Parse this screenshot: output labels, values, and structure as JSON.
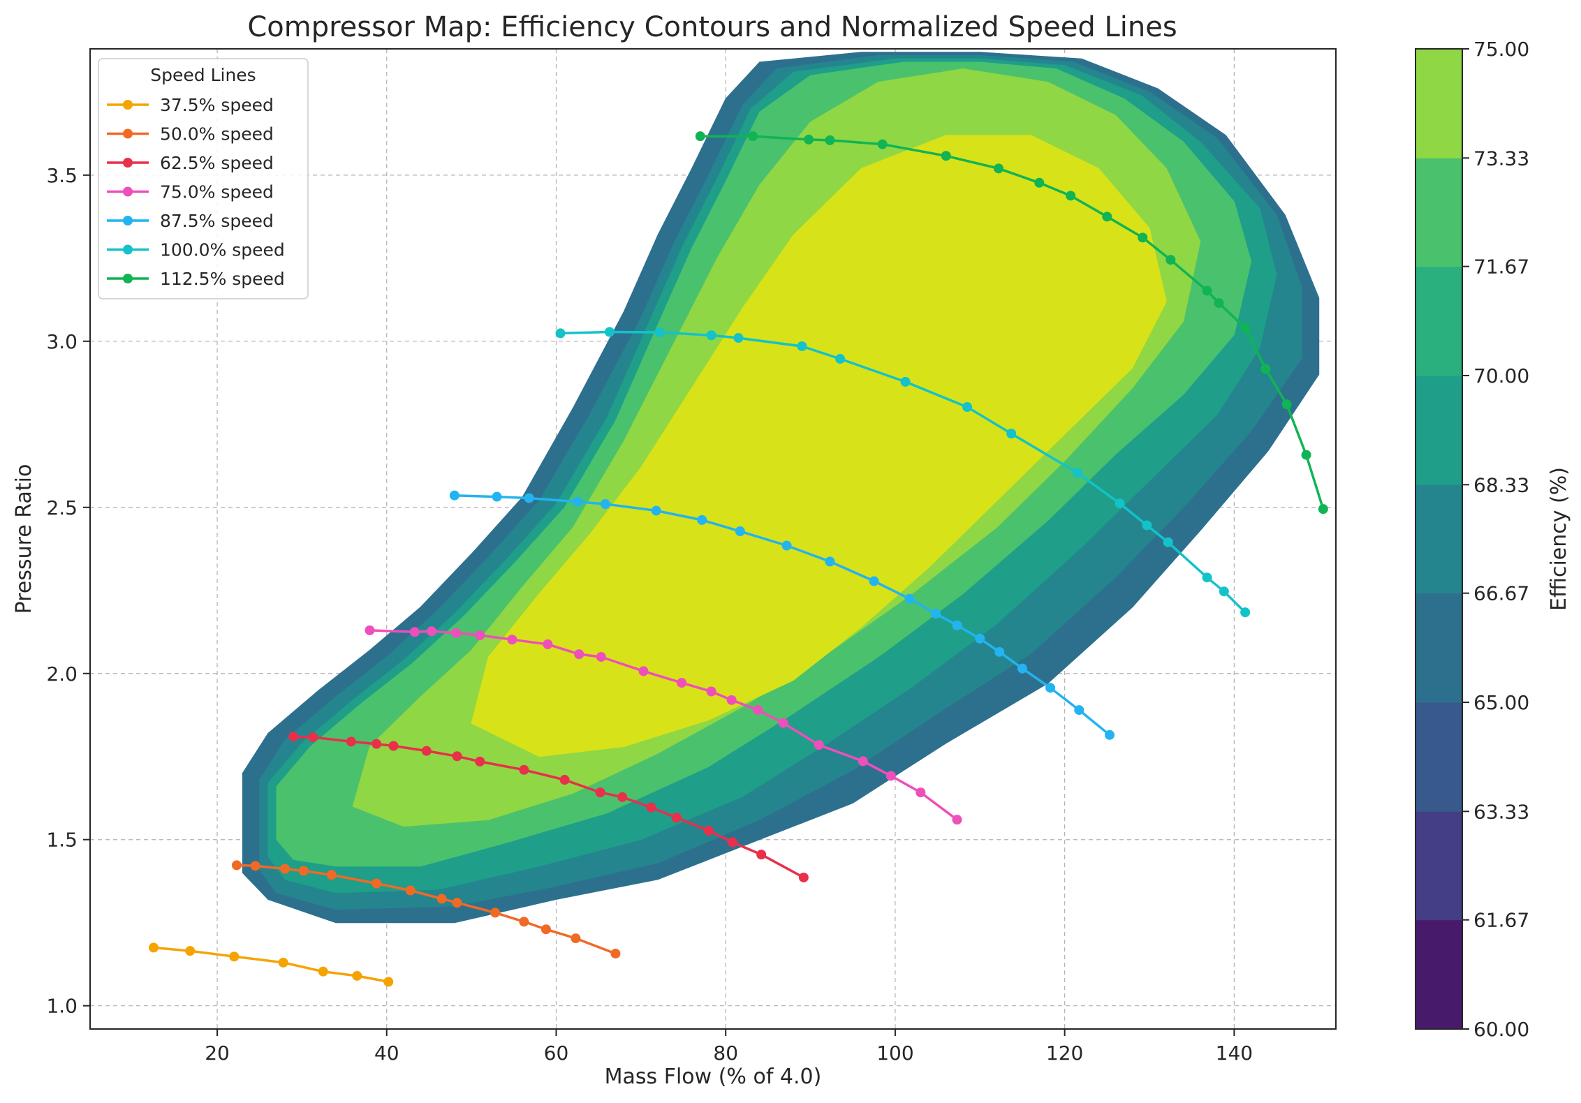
{
  "chart_data": {
    "type": "contour+line",
    "title": "Compressor Map: Efficiency Contours and Normalized Speed Lines",
    "xlabel": "Mass Flow (% of 4.0)",
    "ylabel": "Pressure Ratio",
    "xlim": [
      5,
      152
    ],
    "ylim": [
      0.93,
      3.88
    ],
    "xticks": [
      20,
      40,
      60,
      80,
      100,
      120,
      140
    ],
    "yticks": [
      1.0,
      1.5,
      2.0,
      2.5,
      3.0,
      3.5
    ],
    "ytick_labels": [
      "1.0",
      "1.5",
      "2.0",
      "2.5",
      "3.0",
      "3.5"
    ],
    "grid": true,
    "legend_title": "Speed Lines",
    "legend_position": "top-left",
    "colorbar": {
      "label": "Efficiency (%)",
      "levels": [
        60.0,
        61.67,
        63.33,
        65.0,
        66.67,
        68.33,
        70.0,
        71.67,
        73.33,
        75.0
      ],
      "tick_labels": [
        "60.00",
        "61.67",
        "63.33",
        "65.00",
        "66.67",
        "68.33",
        "70.00",
        "71.67",
        "73.33",
        "75.00"
      ],
      "colors": [
        "#481a6c",
        "#433e85",
        "#38598c",
        "#2d708e",
        "#25858e",
        "#1f9e89",
        "#2ab07f",
        "#4ac16d",
        "#8fd744",
        "#d7e219"
      ]
    },
    "contour_regions": [
      {
        "level": "65.00-66.67",
        "color": "#2d708e",
        "outline": [
          [
            23,
            1.4
          ],
          [
            23,
            1.7
          ],
          [
            26,
            1.82
          ],
          [
            32,
            1.95
          ],
          [
            38,
            2.07
          ],
          [
            44,
            2.2
          ],
          [
            50,
            2.36
          ],
          [
            56,
            2.53
          ],
          [
            62,
            2.8
          ],
          [
            68,
            3.09
          ],
          [
            72,
            3.32
          ],
          [
            76,
            3.52
          ],
          [
            80,
            3.73
          ],
          [
            84,
            3.84
          ],
          [
            96,
            3.87
          ],
          [
            110,
            3.87
          ],
          [
            122,
            3.85
          ],
          [
            131,
            3.76
          ],
          [
            139,
            3.62
          ],
          [
            146,
            3.38
          ],
          [
            150,
            3.13
          ],
          [
            150,
            2.9
          ],
          [
            144,
            2.67
          ],
          [
            136,
            2.43
          ],
          [
            128,
            2.2
          ],
          [
            118,
            1.97
          ],
          [
            106,
            1.79
          ],
          [
            95,
            1.61
          ],
          [
            84,
            1.5
          ],
          [
            72,
            1.38
          ],
          [
            60,
            1.32
          ],
          [
            48,
            1.25
          ],
          [
            34,
            1.25
          ],
          [
            26,
            1.32
          ]
        ]
      },
      {
        "level": "66.67-68.33",
        "color": "#25858e",
        "outline": [
          [
            25,
            1.41
          ],
          [
            25,
            1.68
          ],
          [
            28,
            1.8
          ],
          [
            34,
            1.93
          ],
          [
            40,
            2.05
          ],
          [
            46,
            2.19
          ],
          [
            52,
            2.35
          ],
          [
            58,
            2.52
          ],
          [
            64,
            2.78
          ],
          [
            70,
            3.07
          ],
          [
            74,
            3.3
          ],
          [
            78,
            3.5
          ],
          [
            82,
            3.71
          ],
          [
            86,
            3.82
          ],
          [
            98,
            3.86
          ],
          [
            110,
            3.86
          ],
          [
            121,
            3.84
          ],
          [
            130,
            3.75
          ],
          [
            138,
            3.61
          ],
          [
            145,
            3.38
          ],
          [
            148,
            3.16
          ],
          [
            148,
            2.95
          ],
          [
            142,
            2.73
          ],
          [
            134,
            2.5
          ],
          [
            126,
            2.29
          ],
          [
            116,
            2.06
          ],
          [
            105,
            1.88
          ],
          [
            95,
            1.71
          ],
          [
            84,
            1.56
          ],
          [
            72,
            1.43
          ],
          [
            60,
            1.36
          ],
          [
            48,
            1.3
          ],
          [
            34,
            1.29
          ],
          [
            27,
            1.34
          ]
        ]
      },
      {
        "level": "68.33-70.00",
        "color": "#1f9e89",
        "outline": [
          [
            26,
            1.45
          ],
          [
            26,
            1.67
          ],
          [
            30,
            1.79
          ],
          [
            36,
            1.92
          ],
          [
            42,
            2.04
          ],
          [
            48,
            2.18
          ],
          [
            54,
            2.34
          ],
          [
            60,
            2.51
          ],
          [
            66,
            2.77
          ],
          [
            71,
            3.06
          ],
          [
            75,
            3.29
          ],
          [
            79,
            3.49
          ],
          [
            83,
            3.7
          ],
          [
            88,
            3.81
          ],
          [
            100,
            3.85
          ],
          [
            110,
            3.85
          ],
          [
            120,
            3.83
          ],
          [
            129,
            3.74
          ],
          [
            136,
            3.6
          ],
          [
            143,
            3.4
          ],
          [
            145,
            3.2
          ],
          [
            143,
            2.98
          ],
          [
            138,
            2.78
          ],
          [
            130,
            2.58
          ],
          [
            122,
            2.38
          ],
          [
            112,
            2.15
          ],
          [
            102,
            1.96
          ],
          [
            92,
            1.79
          ],
          [
            82,
            1.63
          ],
          [
            70,
            1.5
          ],
          [
            58,
            1.42
          ],
          [
            46,
            1.35
          ],
          [
            34,
            1.34
          ],
          [
            28,
            1.38
          ]
        ]
      },
      {
        "level": "70.00-71.67",
        "color": "#4ac16d",
        "outline": [
          [
            27,
            1.5
          ],
          [
            27,
            1.66
          ],
          [
            31,
            1.78
          ],
          [
            37,
            1.91
          ],
          [
            43,
            2.03
          ],
          [
            49,
            2.17
          ],
          [
            55,
            2.33
          ],
          [
            61,
            2.5
          ],
          [
            67,
            2.76
          ],
          [
            72,
            3.05
          ],
          [
            76,
            3.28
          ],
          [
            80,
            3.48
          ],
          [
            84,
            3.69
          ],
          [
            90,
            3.8
          ],
          [
            101,
            3.84
          ],
          [
            110,
            3.84
          ],
          [
            119,
            3.82
          ],
          [
            127,
            3.73
          ],
          [
            134,
            3.6
          ],
          [
            140,
            3.42
          ],
          [
            142,
            3.24
          ],
          [
            140,
            3.02
          ],
          [
            134,
            2.84
          ],
          [
            126,
            2.66
          ],
          [
            118,
            2.46
          ],
          [
            108,
            2.24
          ],
          [
            98,
            2.05
          ],
          [
            88,
            1.88
          ],
          [
            78,
            1.72
          ],
          [
            66,
            1.58
          ],
          [
            54,
            1.49
          ],
          [
            44,
            1.42
          ],
          [
            34,
            1.42
          ],
          [
            29,
            1.44
          ]
        ]
      },
      {
        "level": "71.67-73.33",
        "color": "#8fd744",
        "outline": [
          [
            36,
            1.6
          ],
          [
            38,
            1.78
          ],
          [
            44,
            1.93
          ],
          [
            50,
            2.07
          ],
          [
            56,
            2.26
          ],
          [
            62,
            2.44
          ],
          [
            68,
            2.7
          ],
          [
            74,
            3.0
          ],
          [
            79,
            3.25
          ],
          [
            84,
            3.47
          ],
          [
            90,
            3.66
          ],
          [
            98,
            3.78
          ],
          [
            108,
            3.82
          ],
          [
            118,
            3.78
          ],
          [
            126,
            3.68
          ],
          [
            132,
            3.52
          ],
          [
            136,
            3.3
          ],
          [
            134,
            3.06
          ],
          [
            128,
            2.86
          ],
          [
            120,
            2.64
          ],
          [
            112,
            2.44
          ],
          [
            102,
            2.24
          ],
          [
            92,
            2.06
          ],
          [
            82,
            1.9
          ],
          [
            72,
            1.76
          ],
          [
            62,
            1.64
          ],
          [
            52,
            1.56
          ],
          [
            42,
            1.54
          ]
        ]
      },
      {
        "level": "73.33-75.00",
        "color": "#d7e219",
        "outline": [
          [
            50,
            1.85
          ],
          [
            52,
            2.05
          ],
          [
            58,
            2.24
          ],
          [
            64,
            2.42
          ],
          [
            70,
            2.62
          ],
          [
            76,
            2.86
          ],
          [
            82,
            3.1
          ],
          [
            88,
            3.32
          ],
          [
            96,
            3.52
          ],
          [
            106,
            3.62
          ],
          [
            116,
            3.62
          ],
          [
            124,
            3.52
          ],
          [
            130,
            3.34
          ],
          [
            132,
            3.12
          ],
          [
            128,
            2.92
          ],
          [
            120,
            2.72
          ],
          [
            112,
            2.52
          ],
          [
            104,
            2.32
          ],
          [
            96,
            2.14
          ],
          [
            88,
            1.98
          ],
          [
            78,
            1.86
          ],
          [
            68,
            1.78
          ],
          [
            58,
            1.75
          ]
        ]
      }
    ],
    "series": [
      {
        "name": "37.5% speed",
        "color": "#f5a300",
        "x": [
          12.5,
          16.8,
          22.0,
          27.8,
          32.5,
          36.5,
          40.2
        ],
        "y": [
          1.175,
          1.165,
          1.148,
          1.13,
          1.103,
          1.09,
          1.072
        ]
      },
      {
        "name": "50.0% speed",
        "color": "#f06a25",
        "x": [
          22.3,
          24.5,
          28.0,
          30.2,
          33.5,
          38.8,
          42.8,
          46.5,
          48.3,
          52.8,
          56.2,
          58.8,
          62.3,
          67.0
        ],
        "y": [
          1.423,
          1.421,
          1.412,
          1.406,
          1.394,
          1.368,
          1.347,
          1.322,
          1.31,
          1.28,
          1.253,
          1.23,
          1.203,
          1.157
        ]
      },
      {
        "name": "62.5% speed",
        "color": "#e8304b",
        "x": [
          29.0,
          31.3,
          35.8,
          38.8,
          40.8,
          44.7,
          48.3,
          51.0,
          56.2,
          61.0,
          65.2,
          67.8,
          71.2,
          74.2,
          78.0,
          80.8,
          84.2,
          89.2
        ],
        "y": [
          1.81,
          1.808,
          1.795,
          1.788,
          1.782,
          1.767,
          1.751,
          1.735,
          1.71,
          1.68,
          1.642,
          1.628,
          1.597,
          1.566,
          1.527,
          1.492,
          1.455,
          1.386
        ]
      },
      {
        "name": "75.0% speed",
        "color": "#ee4fba",
        "x": [
          38.0,
          43.3,
          45.3,
          48.2,
          51.0,
          54.8,
          59.0,
          62.7,
          65.3,
          70.3,
          74.8,
          78.3,
          80.7,
          83.8,
          86.8,
          91.0,
          96.2,
          99.5,
          103.0,
          107.3
        ],
        "y": [
          2.13,
          2.125,
          2.127,
          2.122,
          2.115,
          2.102,
          2.088,
          2.058,
          2.05,
          2.007,
          1.972,
          1.946,
          1.92,
          1.89,
          1.851,
          1.785,
          1.736,
          1.692,
          1.642,
          1.56
        ]
      },
      {
        "name": "87.5% speed",
        "color": "#23b3f0",
        "x": [
          48.0,
          53.0,
          56.8,
          62.5,
          65.8,
          71.8,
          77.2,
          81.7,
          87.2,
          92.3,
          97.5,
          101.7,
          104.8,
          107.3,
          110.0,
          112.3,
          115.0,
          118.3,
          121.7,
          125.3
        ],
        "y": [
          2.536,
          2.532,
          2.528,
          2.517,
          2.51,
          2.49,
          2.462,
          2.428,
          2.385,
          2.337,
          2.278,
          2.225,
          2.18,
          2.145,
          2.105,
          2.065,
          2.015,
          1.957,
          1.89,
          1.815
        ]
      },
      {
        "name": "100.0% speed",
        "color": "#14c2c9",
        "x": [
          60.5,
          66.3,
          72.2,
          78.3,
          81.5,
          89.0,
          93.5,
          101.2,
          108.5,
          113.7,
          121.5,
          126.5,
          129.7,
          132.2,
          136.8,
          138.8,
          141.3
        ],
        "y": [
          3.024,
          3.028,
          3.027,
          3.018,
          3.01,
          2.985,
          2.947,
          2.878,
          2.802,
          2.722,
          2.604,
          2.512,
          2.446,
          2.395,
          2.289,
          2.247,
          2.184
        ]
      },
      {
        "name": "112.5% speed",
        "color": "#10b454",
        "x": [
          77.0,
          83.2,
          89.8,
          92.3,
          98.5,
          106.0,
          112.2,
          117.0,
          120.7,
          125.0,
          129.2,
          132.5,
          136.8,
          138.2,
          141.3,
          143.7,
          146.2,
          148.5,
          150.5
        ],
        "y": [
          3.617,
          3.617,
          3.607,
          3.605,
          3.593,
          3.558,
          3.52,
          3.477,
          3.438,
          3.375,
          3.312,
          3.245,
          3.152,
          3.115,
          3.04,
          2.917,
          2.81,
          2.658,
          2.495
        ]
      }
    ]
  }
}
